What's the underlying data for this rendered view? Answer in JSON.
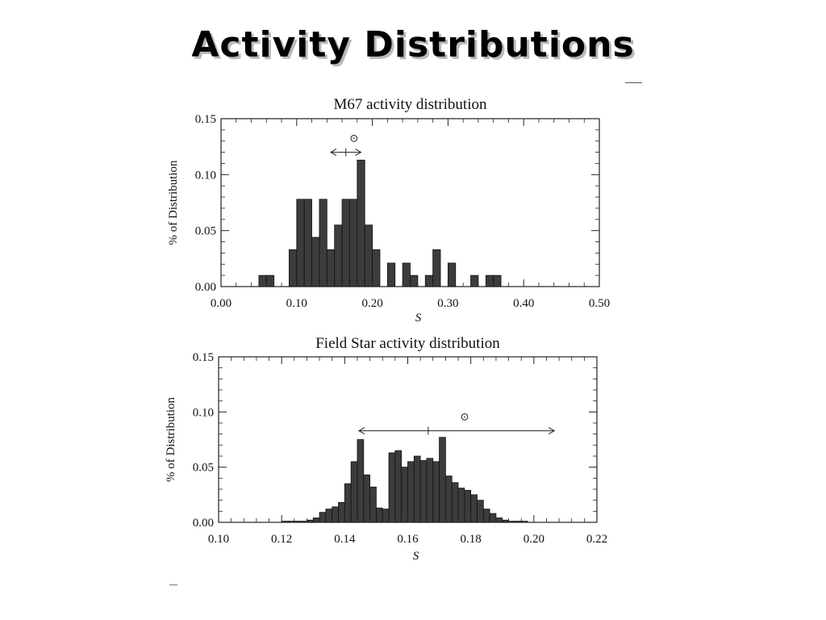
{
  "slide": {
    "title": "Activity Distributions"
  },
  "chart_data": [
    {
      "type": "bar",
      "title": "M67 activity distribution",
      "xlabel": "S",
      "ylabel": "% of Distribution",
      "xlim": [
        0.0,
        0.5
      ],
      "ylim": [
        0.0,
        0.15
      ],
      "xticks": [
        "0.00",
        "0.10",
        "0.20",
        "0.30",
        "0.40",
        "0.50"
      ],
      "yticks": [
        "0.00",
        "0.05",
        "0.10",
        "0.15"
      ],
      "bin_width": 0.01,
      "bar_color": "#3c3c3c",
      "solar_marker": {
        "symbol": "⊙",
        "center": 0.165,
        "range": [
          0.145,
          0.185
        ],
        "level": 0.12
      },
      "bins": [
        {
          "x": 0.05,
          "y": 0.01
        },
        {
          "x": 0.06,
          "y": 0.01
        },
        {
          "x": 0.09,
          "y": 0.033
        },
        {
          "x": 0.1,
          "y": 0.078
        },
        {
          "x": 0.11,
          "y": 0.078
        },
        {
          "x": 0.12,
          "y": 0.044
        },
        {
          "x": 0.13,
          "y": 0.078
        },
        {
          "x": 0.14,
          "y": 0.033
        },
        {
          "x": 0.15,
          "y": 0.055
        },
        {
          "x": 0.16,
          "y": 0.078
        },
        {
          "x": 0.17,
          "y": 0.078
        },
        {
          "x": 0.18,
          "y": 0.113
        },
        {
          "x": 0.19,
          "y": 0.055
        },
        {
          "x": 0.2,
          "y": 0.033
        },
        {
          "x": 0.22,
          "y": 0.021
        },
        {
          "x": 0.24,
          "y": 0.021
        },
        {
          "x": 0.25,
          "y": 0.01
        },
        {
          "x": 0.27,
          "y": 0.01
        },
        {
          "x": 0.28,
          "y": 0.033
        },
        {
          "x": 0.3,
          "y": 0.021
        },
        {
          "x": 0.33,
          "y": 0.01
        },
        {
          "x": 0.35,
          "y": 0.01
        },
        {
          "x": 0.36,
          "y": 0.01
        }
      ]
    },
    {
      "type": "bar",
      "title": "Field Star activity distribution",
      "xlabel": "S",
      "ylabel": "% of Distribution",
      "xlim": [
        0.1,
        0.22
      ],
      "ylim": [
        0.0,
        0.15
      ],
      "xticks": [
        "0.10",
        "0.12",
        "0.14",
        "0.16",
        "0.18",
        "0.20",
        "0.22"
      ],
      "yticks": [
        "0.00",
        "0.05",
        "0.10",
        "0.15"
      ],
      "bin_width": 0.002,
      "bar_color": "#3c3c3c",
      "solar_marker": {
        "symbol": "⊙",
        "center": 0.1665,
        "range": [
          0.1445,
          0.2065
        ],
        "level": 0.083
      },
      "bins": [
        {
          "x": 0.12,
          "y": 0.001
        },
        {
          "x": 0.122,
          "y": 0.001
        },
        {
          "x": 0.124,
          "y": 0.001
        },
        {
          "x": 0.126,
          "y": 0.001
        },
        {
          "x": 0.128,
          "y": 0.002
        },
        {
          "x": 0.13,
          "y": 0.004
        },
        {
          "x": 0.132,
          "y": 0.009
        },
        {
          "x": 0.134,
          "y": 0.012
        },
        {
          "x": 0.136,
          "y": 0.014
        },
        {
          "x": 0.138,
          "y": 0.018
        },
        {
          "x": 0.14,
          "y": 0.035
        },
        {
          "x": 0.142,
          "y": 0.055
        },
        {
          "x": 0.144,
          "y": 0.075
        },
        {
          "x": 0.146,
          "y": 0.043
        },
        {
          "x": 0.148,
          "y": 0.032
        },
        {
          "x": 0.15,
          "y": 0.013
        },
        {
          "x": 0.152,
          "y": 0.012
        },
        {
          "x": 0.154,
          "y": 0.063
        },
        {
          "x": 0.156,
          "y": 0.065
        },
        {
          "x": 0.158,
          "y": 0.05
        },
        {
          "x": 0.16,
          "y": 0.055
        },
        {
          "x": 0.162,
          "y": 0.06
        },
        {
          "x": 0.164,
          "y": 0.056
        },
        {
          "x": 0.166,
          "y": 0.058
        },
        {
          "x": 0.168,
          "y": 0.055
        },
        {
          "x": 0.17,
          "y": 0.077
        },
        {
          "x": 0.172,
          "y": 0.042
        },
        {
          "x": 0.174,
          "y": 0.036
        },
        {
          "x": 0.176,
          "y": 0.031
        },
        {
          "x": 0.178,
          "y": 0.029
        },
        {
          "x": 0.18,
          "y": 0.025
        },
        {
          "x": 0.182,
          "y": 0.02
        },
        {
          "x": 0.184,
          "y": 0.012
        },
        {
          "x": 0.186,
          "y": 0.008
        },
        {
          "x": 0.188,
          "y": 0.004
        },
        {
          "x": 0.19,
          "y": 0.002
        },
        {
          "x": 0.192,
          "y": 0.001
        },
        {
          "x": 0.194,
          "y": 0.001
        },
        {
          "x": 0.196,
          "y": 0.001
        }
      ]
    }
  ]
}
